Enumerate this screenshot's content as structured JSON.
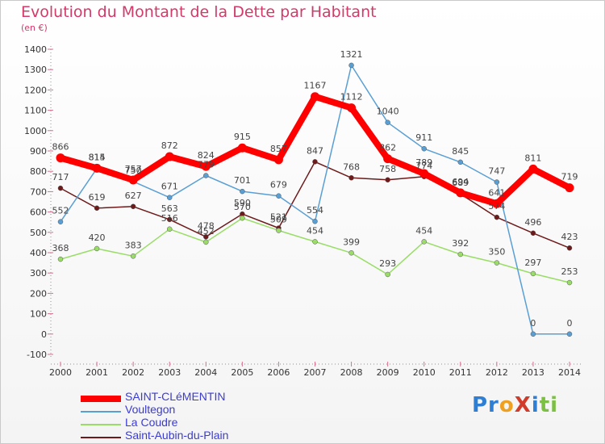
{
  "title": "Evolution du Montant de la Dette par Habitant",
  "subtitle": "(en €)",
  "logo": "ProXiti",
  "chart_data": {
    "type": "line",
    "title": "Evolution du Montant de la Dette par Habitant",
    "subtitle": "(en €)",
    "xlabel": "",
    "ylabel": "",
    "x": [
      "2000",
      "2001",
      "2002",
      "2003",
      "2004",
      "2005",
      "2006",
      "2007",
      "2008",
      "2009",
      "2010",
      "2011",
      "2012",
      "2013",
      "2014"
    ],
    "yticks": [
      -100,
      0,
      100,
      200,
      300,
      400,
      500,
      600,
      700,
      800,
      900,
      1000,
      1100,
      1200,
      1300,
      1400
    ],
    "ylim": [
      -100,
      1400
    ],
    "grid": false,
    "legend": "bottom",
    "series": [
      {
        "name": "SAINT-CLéMENTIN",
        "color": "#ff0000",
        "values": [
          866,
          815,
          757,
          872,
          824,
          915,
          857,
          1167,
          1112,
          862,
          789,
          694,
          641,
          811,
          719
        ],
        "labels": [
          "866",
          "815",
          "757",
          "872",
          "824",
          "915",
          "857",
          "1167",
          "1112",
          "862",
          "789",
          "694",
          "641",
          "811",
          "719"
        ]
      },
      {
        "name": "Voultegon",
        "color": "#5a9fd4",
        "values": [
          552,
          814,
          750,
          671,
          779,
          701,
          679,
          554,
          1321,
          1040,
          911,
          845,
          747,
          0,
          0
        ],
        "labels": [
          "552",
          "814",
          "750",
          "671",
          "779",
          "701",
          "679",
          "554",
          "1321",
          "1040",
          "911",
          "845",
          "747",
          "0",
          "0"
        ]
      },
      {
        "name": "La Coudre",
        "color": "#99dd66",
        "values": [
          368,
          420,
          383,
          516,
          452,
          570,
          509,
          454,
          399,
          293,
          454,
          392,
          350,
          297,
          253
        ],
        "labels": [
          "368",
          "420",
          "383",
          "516",
          "452",
          "570",
          "509",
          "454",
          "399",
          "293",
          "454",
          "392",
          "350",
          "297",
          "253"
        ]
      },
      {
        "name": "Saint-Aubin-du-Plain",
        "color": "#6e1a1a",
        "values": [
          717,
          619,
          627,
          563,
          478,
          590,
          521,
          847,
          768,
          758,
          774,
          689,
          574,
          496,
          423
        ],
        "labels": [
          "717",
          "619",
          "627",
          "563",
          "478",
          "590",
          "521",
          "847",
          "768",
          "758",
          "774",
          "689",
          "574",
          "496",
          "423"
        ]
      }
    ]
  }
}
